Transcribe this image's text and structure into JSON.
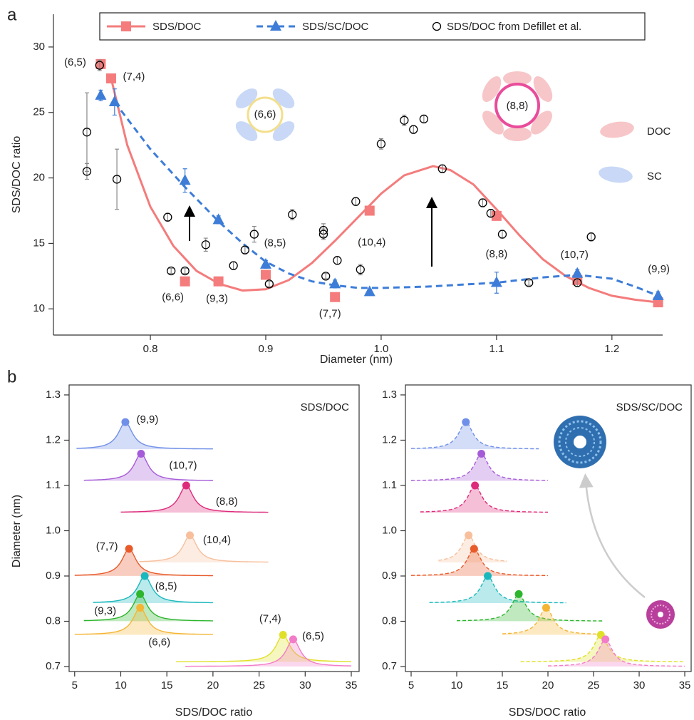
{
  "chart_data": [
    {
      "type": "scatter",
      "panel_label": "a",
      "xlabel": "Diameter (nm)",
      "ylabel": "SDS/DOC ratio",
      "xlim": [
        0.716,
        1.26
      ],
      "ylim": [
        8,
        32.5
      ],
      "xticks": [
        0.8,
        0.9,
        {
          "value": 1,
          "label": "1.0"
        },
        1.1,
        1.2
      ],
      "yticks": [
        10,
        15,
        20,
        25,
        30
      ],
      "series": [
        {
          "name": "SDS/DOC",
          "color": "#f47c7c",
          "marker": "square",
          "dashed": false,
          "x": [
            0.757,
            0.766,
            0.83,
            0.859,
            0.9,
            0.96,
            0.99,
            1.1,
            1.17,
            1.24
          ],
          "values": [
            28.7,
            27.6,
            12.1,
            12.1,
            12.6,
            10.9,
            17.5,
            17.1,
            12.2,
            10.5
          ],
          "point_labels": [
            "(6,5)",
            "(7,4)",
            "(6,6)",
            "(9,3)",
            "(8,5)",
            "(7,7)",
            "(10,4)",
            "(8,8)",
            "(10,7)",
            "(9,9)"
          ],
          "fit": {
            "x": [
              0.766,
              0.78,
              0.8,
              0.82,
              0.84,
              0.86,
              0.88,
              0.9,
              0.92,
              0.94,
              0.96,
              0.98,
              1.0,
              1.02,
              1.045,
              1.06,
              1.08,
              1.1,
              1.12,
              1.14,
              1.16,
              1.18,
              1.2,
              1.22,
              1.24
            ],
            "values": [
              27.6,
              22.5,
              17.8,
              14.8,
              12.9,
              11.9,
              11.4,
              11.5,
              12.2,
              13.5,
              15.2,
              17.0,
              18.8,
              20.2,
              20.9,
              20.6,
              19.5,
              17.6,
              15.6,
              13.8,
              12.5,
              11.6,
              11.0,
              10.7,
              10.5
            ]
          }
        },
        {
          "name": "SDS/SC/DOC",
          "color": "#3d7dd8",
          "marker": "triangle",
          "dashed": true,
          "x": [
            0.757,
            0.769,
            0.83,
            0.859,
            0.9,
            0.96,
            0.99,
            1.1,
            1.17,
            1.24
          ],
          "values": [
            26.3,
            25.8,
            19.8,
            16.8,
            13.4,
            11.9,
            11.3,
            12.0,
            12.7,
            11.0
          ],
          "errors": [
            0.4,
            1.0,
            0.9,
            0.3,
            0.3,
            0.3,
            0.2,
            0.8,
            0.3,
            0.3
          ],
          "fit": {
            "x": [
              0.769,
              0.8,
              0.83,
              0.86,
              0.88,
              0.9,
              0.92,
              0.94,
              0.96,
              0.98,
              1.0,
              1.04,
              1.08,
              1.1,
              1.14,
              1.17,
              1.2,
              1.22,
              1.24
            ],
            "values": [
              25.8,
              22.2,
              19.3,
              16.6,
              15.0,
              13.6,
              12.7,
              12.1,
              11.8,
              11.6,
              11.6,
              11.7,
              11.9,
              12.0,
              12.4,
              12.6,
              12.3,
              11.7,
              11.0
            ]
          }
        },
        {
          "name": "SDS/DOC from Defillet et al.",
          "color": "#000000",
          "marker": "circle",
          "x": [
            0.745,
            0.745,
            0.756,
            0.771,
            0.815,
            0.818,
            0.83,
            0.848,
            0.872,
            0.882,
            0.89,
            0.903,
            0.923,
            0.95,
            0.95,
            0.952,
            0.962,
            0.978,
            0.982,
            1.0,
            1.02,
            1.028,
            1.037,
            1.053,
            1.088,
            1.095,
            1.105,
            1.128,
            1.17,
            1.182
          ],
          "values": [
            23.5,
            20.5,
            28.6,
            19.9,
            17.0,
            12.9,
            12.9,
            14.9,
            13.3,
            14.5,
            15.7,
            11.9,
            17.2,
            16.0,
            15.7,
            12.5,
            13.7,
            18.2,
            13.0,
            22.6,
            24.4,
            23.7,
            24.5,
            20.7,
            18.1,
            17.3,
            15.7,
            12.0,
            12.0,
            15.5
          ],
          "errors": [
            3.0,
            0.6,
            0.4,
            2.3,
            0.3,
            0.2,
            0.2,
            0.5,
            0.3,
            0.3,
            0.6,
            0.2,
            0.4,
            0.5,
            0.4,
            0.2,
            0.3,
            0.3,
            0.4,
            0.4,
            0.4,
            0.3,
            0.3,
            0.3,
            0.3,
            0.3,
            0.3,
            0.2,
            0.3,
            0.3
          ]
        }
      ],
      "schematic": {
        "tube_labels": [
          "(6,6)",
          "(8,8)"
        ],
        "components": [
          "DOC",
          "SC"
        ]
      }
    },
    {
      "type": "ridgeline",
      "panel_label": "b",
      "title": "SDS/DOC",
      "xlabel": "SDS/DOC ratio",
      "ylabel": "Diameter (nm)",
      "xlim": [
        4.4,
        35.85
      ],
      "ylim": [
        0.689,
        1.322
      ],
      "dashed": false,
      "xticks": [
        5,
        10,
        15,
        20,
        25,
        30,
        35
      ],
      "yticks": [
        0.7,
        0.8,
        0.9,
        {
          "value": 1,
          "label": "1.0"
        },
        1.1,
        1.2,
        1.3
      ],
      "curves": [
        {
          "name": "(9,9)",
          "color": "#6f8fe8",
          "diameter": 1.24,
          "ratio": 10.5,
          "range": [
            5.2,
            20
          ]
        },
        {
          "name": "(10,7)",
          "color": "#a55bd8",
          "diameter": 1.17,
          "ratio": 12.2,
          "range": [
            6,
            20
          ]
        },
        {
          "name": "(8,8)",
          "color": "#dd2a7b",
          "diameter": 1.1,
          "ratio": 17.1,
          "range": [
            10,
            26
          ]
        },
        {
          "name": "(10,4)",
          "color": "#f7bf9c",
          "diameter": 0.99,
          "ratio": 17.5,
          "range": [
            12,
            26
          ]
        },
        {
          "name": "(7,7)",
          "color": "#e85a2a",
          "diameter": 0.96,
          "ratio": 10.9,
          "range": [
            5,
            20
          ]
        },
        {
          "name": "(8,5)",
          "color": "#1ab8bd",
          "diameter": 0.9,
          "ratio": 12.6,
          "range": [
            7,
            20
          ]
        },
        {
          "name": "(9,3)",
          "color": "#2db52d",
          "diameter": 0.86,
          "ratio": 12.1,
          "range": [
            6,
            20
          ]
        },
        {
          "name": "(6,6)",
          "color": "#f4b534",
          "diameter": 0.83,
          "ratio": 12.1,
          "range": [
            5,
            20
          ]
        },
        {
          "name": "(7,4)",
          "color": "#e0e02a",
          "diameter": 0.77,
          "ratio": 27.6,
          "range": [
            16,
            35
          ]
        },
        {
          "name": "(6,5)",
          "color": "#f27cc8",
          "diameter": 0.76,
          "ratio": 28.7,
          "range": [
            17,
            35
          ]
        }
      ]
    },
    {
      "type": "ridgeline",
      "title": "SDS/SC/DOC",
      "xlabel": "SDS/DOC ratio",
      "xlim": [
        4.375,
        35.7
      ],
      "ylim": [
        0.689,
        1.322
      ],
      "dashed": true,
      "xticks": [
        5,
        10,
        15,
        20,
        25,
        30,
        35
      ],
      "yticks": [
        0.7,
        0.8,
        0.9,
        {
          "value": 1,
          "label": "1.0"
        },
        1.1,
        1.2,
        1.3
      ],
      "curves": [
        {
          "color": "#6f8fe8",
          "diameter": 1.24,
          "ratio": 11.0,
          "range": [
            5,
            19
          ]
        },
        {
          "color": "#a55bd8",
          "diameter": 1.17,
          "ratio": 12.7,
          "range": [
            5,
            20
          ]
        },
        {
          "color": "#dd2a7b",
          "diameter": 1.1,
          "ratio": 12.0,
          "range": [
            6,
            20
          ]
        },
        {
          "color": "#f7bf9c",
          "diameter": 0.99,
          "ratio": 11.3,
          "range": [
            8,
            15.5
          ]
        },
        {
          "color": "#e85a2a",
          "diameter": 0.96,
          "ratio": 11.9,
          "range": [
            5,
            20
          ]
        },
        {
          "color": "#1ab8bd",
          "diameter": 0.9,
          "ratio": 13.4,
          "range": [
            7,
            22
          ]
        },
        {
          "color": "#2db52d",
          "diameter": 0.86,
          "ratio": 16.8,
          "range": [
            10,
            26
          ]
        },
        {
          "color": "#f4b534",
          "diameter": 0.83,
          "ratio": 19.8,
          "range": [
            15,
            26
          ]
        },
        {
          "color": "#e0e02a",
          "diameter": 0.77,
          "ratio": 25.8,
          "range": [
            17,
            35
          ]
        },
        {
          "color": "#f27cc8",
          "diameter": 0.76,
          "ratio": 26.3,
          "range": [
            20,
            35
          ]
        }
      ]
    }
  ]
}
